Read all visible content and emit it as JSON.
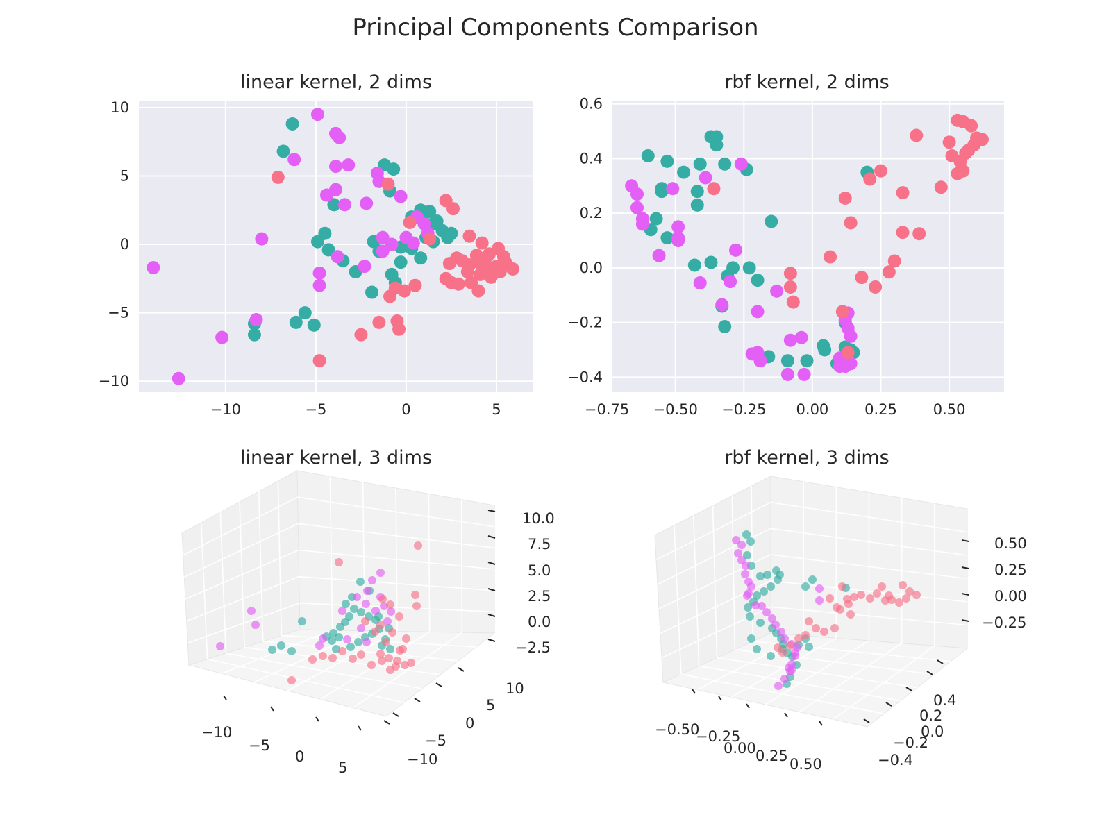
{
  "figure": {
    "title": "Principal Components Comparison",
    "colors": {
      "red": "#f77189",
      "teal": "#36ada4",
      "magenta": "#e35ff5",
      "panel_bg": "#eaeaf2",
      "grid": "#ffffff",
      "text": "#262626"
    }
  },
  "chart_data": [
    {
      "type": "scatter",
      "title": "linear kernel, 2 dims",
      "xlim": [
        -14.8,
        7.0
      ],
      "ylim": [
        -10.8,
        10.5
      ],
      "xticks": [
        -10,
        -5,
        0,
        5
      ],
      "yticks": [
        -10,
        -5,
        0,
        5,
        10
      ],
      "xtick_labels": [
        "−10",
        "−5",
        "0",
        "5"
      ],
      "ytick_labels": [
        "−10",
        "−5",
        "0",
        "5",
        "10"
      ],
      "grid": true,
      "series": [
        {
          "color": "#36ada4",
          "points": [
            [
              -6.3,
              8.8
            ],
            [
              -6.8,
              6.8
            ],
            [
              -1.2,
              5.8
            ],
            [
              -0.7,
              5.5
            ],
            [
              -0.9,
              3.9
            ],
            [
              -4.0,
              2.9
            ],
            [
              0.8,
              2.5
            ],
            [
              1.3,
              2.4
            ],
            [
              1.7,
              1.7
            ],
            [
              0.9,
              1.8
            ],
            [
              1.5,
              1.5
            ],
            [
              2.0,
              1.0
            ],
            [
              2.3,
              0.5
            ],
            [
              1.5,
              0.2
            ],
            [
              -4.5,
              0.8
            ],
            [
              -4.9,
              0.2
            ],
            [
              -4.3,
              -0.4
            ],
            [
              -1.8,
              0.2
            ],
            [
              -1.5,
              -0.5
            ],
            [
              -0.3,
              -0.2
            ],
            [
              0.3,
              -0.3
            ],
            [
              0.8,
              -1.0
            ],
            [
              -3.5,
              -1.2
            ],
            [
              -2.8,
              -2.0
            ],
            [
              -0.8,
              -2.2
            ],
            [
              -0.6,
              -2.8
            ],
            [
              -0.3,
              -1.3
            ],
            [
              -1.9,
              -3.5
            ],
            [
              -5.6,
              -5.0
            ],
            [
              -6.1,
              -5.7
            ],
            [
              -5.1,
              -5.9
            ],
            [
              -8.4,
              -5.8
            ],
            [
              -8.4,
              -6.6
            ],
            [
              0.3,
              2.0
            ],
            [
              2.5,
              0.8
            ],
            [
              1.1,
              0.5
            ]
          ]
        },
        {
          "color": "#e35ff5",
          "points": [
            [
              -4.9,
              9.5
            ],
            [
              -3.9,
              8.1
            ],
            [
              -3.7,
              7.8
            ],
            [
              -6.2,
              6.2
            ],
            [
              -3.9,
              5.7
            ],
            [
              -3.2,
              5.8
            ],
            [
              -1.6,
              5.2
            ],
            [
              -0.3,
              3.5
            ],
            [
              -1.5,
              4.6
            ],
            [
              -4.4,
              3.6
            ],
            [
              -3.9,
              4.0
            ],
            [
              -3.4,
              2.9
            ],
            [
              -2.2,
              3.0
            ],
            [
              0.6,
              2.0
            ],
            [
              1.0,
              1.5
            ],
            [
              -8.0,
              0.4
            ],
            [
              -1.3,
              0.5
            ],
            [
              0.0,
              0.5
            ],
            [
              -0.8,
              0.0
            ],
            [
              -1.3,
              -0.5
            ],
            [
              -3.8,
              -0.9
            ],
            [
              -2.3,
              -1.6
            ],
            [
              -14.0,
              -1.7
            ],
            [
              -4.8,
              -2.1
            ],
            [
              -4.8,
              -3.0
            ],
            [
              -8.3,
              -5.5
            ],
            [
              -10.2,
              -6.8
            ],
            [
              -12.6,
              -9.8
            ],
            [
              1.2,
              0.8
            ],
            [
              0.4,
              0.1
            ]
          ]
        },
        {
          "color": "#f77189",
          "points": [
            [
              -7.1,
              4.9
            ],
            [
              -1.0,
              4.4
            ],
            [
              2.2,
              3.2
            ],
            [
              2.6,
              2.6
            ],
            [
              0.2,
              1.6
            ],
            [
              3.5,
              0.6
            ],
            [
              4.2,
              0.1
            ],
            [
              5.1,
              -0.3
            ],
            [
              4.6,
              -0.7
            ],
            [
              3.1,
              -1.2
            ],
            [
              3.5,
              -1.5
            ],
            [
              4.0,
              -1.3
            ],
            [
              4.5,
              -1.7
            ],
            [
              5.0,
              -1.6
            ],
            [
              5.5,
              -1.3
            ],
            [
              5.9,
              -1.8
            ],
            [
              3.4,
              -2.0
            ],
            [
              4.1,
              -2.2
            ],
            [
              5.2,
              -2.0
            ],
            [
              4.7,
              -2.4
            ],
            [
              2.2,
              -2.5
            ],
            [
              2.5,
              -2.8
            ],
            [
              2.9,
              -2.9
            ],
            [
              3.6,
              -2.8
            ],
            [
              4.0,
              -3.4
            ],
            [
              2.4,
              -1.4
            ],
            [
              2.8,
              -1.0
            ],
            [
              -0.6,
              -3.2
            ],
            [
              -0.9,
              -3.8
            ],
            [
              -0.1,
              -3.4
            ],
            [
              -0.5,
              -5.6
            ],
            [
              -1.5,
              -5.7
            ],
            [
              -0.4,
              -6.2
            ],
            [
              -2.5,
              -6.6
            ],
            [
              -4.8,
              -8.5
            ],
            [
              0.5,
              -3.0
            ],
            [
              1.3,
              0.4
            ],
            [
              3.9,
              -0.8
            ],
            [
              4.4,
              -1.0
            ],
            [
              5.4,
              -0.9
            ]
          ]
        }
      ]
    },
    {
      "type": "scatter",
      "title": "rbf kernel, 2 dims",
      "xlim": [
        -0.73,
        0.7
      ],
      "ylim": [
        -0.455,
        0.612
      ],
      "xticks": [
        -0.75,
        -0.5,
        -0.25,
        0.0,
        0.25,
        0.5
      ],
      "yticks": [
        -0.4,
        -0.2,
        0.0,
        0.2,
        0.4,
        0.6
      ],
      "xtick_labels": [
        "−0.75",
        "−0.50",
        "−0.25",
        "0.00",
        "0.25",
        "0.50"
      ],
      "ytick_labels": [
        "−0.4",
        "−0.2",
        "0.0",
        "0.2",
        "0.4",
        "0.6"
      ],
      "grid": true,
      "series": [
        {
          "color": "#36ada4",
          "points": [
            [
              -0.37,
              0.48
            ],
            [
              -0.35,
              0.48
            ],
            [
              -0.35,
              0.45
            ],
            [
              -0.6,
              0.41
            ],
            [
              -0.53,
              0.39
            ],
            [
              -0.41,
              0.38
            ],
            [
              -0.32,
              0.38
            ],
            [
              -0.24,
              0.36
            ],
            [
              -0.47,
              0.35
            ],
            [
              -0.55,
              0.29
            ],
            [
              -0.55,
              0.28
            ],
            [
              -0.42,
              0.28
            ],
            [
              -0.42,
              0.23
            ],
            [
              -0.57,
              0.18
            ],
            [
              -0.59,
              0.14
            ],
            [
              -0.53,
              0.11
            ],
            [
              -0.15,
              0.17
            ],
            [
              0.2,
              0.35
            ],
            [
              -0.43,
              0.01
            ],
            [
              -0.37,
              0.02
            ],
            [
              -0.31,
              -0.03
            ],
            [
              -0.29,
              0.0
            ],
            [
              -0.23,
              0.0
            ],
            [
              -0.2,
              -0.045
            ],
            [
              -0.33,
              -0.14
            ],
            [
              -0.32,
              -0.215
            ],
            [
              -0.16,
              -0.325
            ],
            [
              -0.09,
              -0.34
            ],
            [
              -0.02,
              -0.34
            ],
            [
              0.04,
              -0.285
            ],
            [
              0.045,
              -0.3
            ],
            [
              0.09,
              -0.35
            ],
            [
              0.12,
              -0.29
            ],
            [
              0.12,
              -0.2
            ],
            [
              0.14,
              -0.3
            ],
            [
              0.15,
              -0.31
            ]
          ]
        },
        {
          "color": "#e35ff5",
          "points": [
            [
              -0.66,
              0.3
            ],
            [
              -0.64,
              0.27
            ],
            [
              -0.64,
              0.22
            ],
            [
              -0.62,
              0.18
            ],
            [
              -0.62,
              0.16
            ],
            [
              -0.51,
              0.29
            ],
            [
              -0.39,
              0.33
            ],
            [
              -0.26,
              0.38
            ],
            [
              -0.49,
              0.15
            ],
            [
              -0.49,
              0.11
            ],
            [
              -0.49,
              0.1
            ],
            [
              -0.56,
              0.045
            ],
            [
              -0.28,
              0.065
            ],
            [
              -0.41,
              -0.055
            ],
            [
              -0.3,
              -0.05
            ],
            [
              -0.33,
              -0.135
            ],
            [
              -0.2,
              -0.16
            ],
            [
              -0.13,
              -0.085
            ],
            [
              -0.2,
              -0.31
            ],
            [
              -0.19,
              -0.34
            ],
            [
              -0.22,
              -0.315
            ],
            [
              -0.08,
              -0.265
            ],
            [
              -0.04,
              -0.255
            ],
            [
              -0.09,
              -0.39
            ],
            [
              -0.03,
              -0.39
            ],
            [
              0.1,
              -0.33
            ],
            [
              0.1,
              -0.36
            ],
            [
              0.12,
              -0.36
            ],
            [
              0.14,
              -0.35
            ],
            [
              0.12,
              -0.19
            ],
            [
              0.13,
              -0.22
            ],
            [
              0.14,
              -0.25
            ],
            [
              0.13,
              -0.165
            ]
          ]
        },
        {
          "color": "#f77189",
          "points": [
            [
              0.53,
              0.54
            ],
            [
              0.55,
              0.535
            ],
            [
              0.58,
              0.52
            ],
            [
              0.6,
              0.475
            ],
            [
              0.62,
              0.47
            ],
            [
              0.59,
              0.45
            ],
            [
              0.57,
              0.43
            ],
            [
              0.56,
              0.42
            ],
            [
              0.5,
              0.46
            ],
            [
              0.51,
              0.41
            ],
            [
              0.54,
              0.39
            ],
            [
              0.55,
              0.355
            ],
            [
              0.53,
              0.345
            ],
            [
              0.47,
              0.295
            ],
            [
              0.38,
              0.485
            ],
            [
              0.25,
              0.355
            ],
            [
              0.21,
              0.325
            ],
            [
              0.33,
              0.275
            ],
            [
              0.12,
              0.255
            ],
            [
              0.14,
              0.165
            ],
            [
              0.33,
              0.13
            ],
            [
              0.39,
              0.125
            ],
            [
              0.3,
              0.025
            ],
            [
              0.28,
              -0.015
            ],
            [
              0.18,
              -0.035
            ],
            [
              0.23,
              -0.07
            ],
            [
              0.065,
              0.04
            ],
            [
              -0.36,
              0.29
            ],
            [
              -0.08,
              -0.02
            ],
            [
              -0.08,
              -0.07
            ],
            [
              -0.07,
              -0.125
            ],
            [
              0.11,
              -0.16
            ],
            [
              0.13,
              -0.31
            ]
          ]
        }
      ]
    },
    {
      "type": "scatter3d",
      "title": "linear kernel, 3 dims",
      "xtick_labels": [
        "−10",
        "−5",
        "0",
        "5"
      ],
      "ytick_labels": [
        "−10",
        "−5",
        "0",
        "5",
        "10"
      ],
      "ztick_labels": [
        "−2.5",
        "0.0",
        "2.5",
        "5.0",
        "7.5",
        "10.0"
      ],
      "grid": true
    },
    {
      "type": "scatter3d",
      "title": "rbf kernel, 3 dims",
      "xtick_labels": [
        "−0.50",
        "−0.25",
        "0.00",
        "0.25",
        "0.50"
      ],
      "ytick_labels": [
        "−0.4",
        "−0.2",
        "0.0",
        "0.2",
        "0.4"
      ],
      "ztick_labels": [
        "−0.25",
        "0.00",
        "0.25",
        "0.50"
      ],
      "grid": true
    }
  ]
}
